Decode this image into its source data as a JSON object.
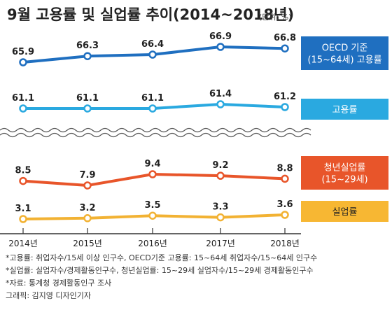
{
  "chart_data": {
    "type": "line",
    "title": "9월 고용률 및 실업률 추이(2014~2018년)",
    "unit": "(단위: %)",
    "x": [
      "2014년",
      "2015년",
      "2016년",
      "2017년",
      "2018년"
    ],
    "series": [
      {
        "name": "OECD 기준 (15~64세) 고용률",
        "values": [
          65.9,
          66.3,
          66.4,
          66.9,
          66.8
        ],
        "labels": [
          "65.9",
          "66.3",
          "66.4",
          "66.9",
          "66.8"
        ],
        "color": "#1f6fc0"
      },
      {
        "name": "고용률",
        "values": [
          61.1,
          61.1,
          61.1,
          61.4,
          61.2
        ],
        "labels": [
          "61.1",
          "61.1",
          "61.1",
          "61.4",
          "61.2"
        ],
        "color": "#2aa9e0"
      },
      {
        "name": "청년실업률 (15~29세)",
        "values": [
          8.5,
          7.9,
          9.4,
          9.2,
          8.8
        ],
        "labels": [
          "8.5",
          "7.9",
          "9.4",
          "9.2",
          "8.8"
        ],
        "color": "#e8552a"
      },
      {
        "name": "실업률",
        "values": [
          3.1,
          3.2,
          3.5,
          3.3,
          3.6
        ],
        "labels": [
          "3.1",
          "3.2",
          "3.5",
          "3.3",
          "3.6"
        ],
        "color": "#f2b233"
      }
    ],
    "axis_break": true
  },
  "legend": [
    {
      "lines": [
        "OECD 기준",
        "(15~64세) 고용률"
      ],
      "color": "#1f6fc0",
      "text_color": "#ffffff"
    },
    {
      "lines": [
        "고용률"
      ],
      "color": "#2aa9e0",
      "text_color": "#ffffff"
    },
    {
      "lines": [
        "청년실업률",
        "(15~29세)"
      ],
      "color": "#e8552a",
      "text_color": "#ffffff"
    },
    {
      "lines": [
        "실업률"
      ],
      "color": "#f7b733",
      "text_color": "#222222"
    }
  ],
  "notes": [
    "*고용률: 취업자수/15세 이상 인구수, OECD기준 고용률: 15~64세 취업자수/15~64세 인구수",
    "*실업률: 실업자수/경제활동인구수, 청년실업률: 15~29세 실업자수/15~29세 경제활동인구수",
    "*자료: 통계청 경제활동인구 조사",
    "그래픽: 김지영 디자인기자"
  ]
}
